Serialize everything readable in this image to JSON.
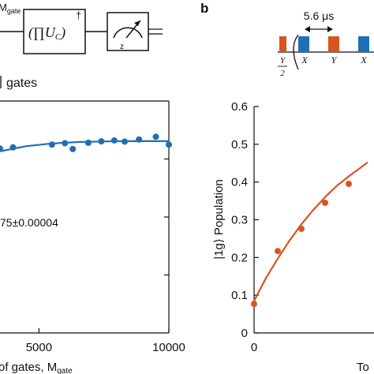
{
  "panel_b_label": "b",
  "circuit": {
    "mgate_label": "M",
    "mgate_sub": "gate",
    "product_label": "(∏U",
    "product_sub": "C",
    "product_close": ")",
    "dagger": "†",
    "meter_axis": "z"
  },
  "pulse_sequence": {
    "spacing_label": "5.6 μs",
    "pulse_labels": [
      "Y/2",
      "X",
      "Y",
      "X"
    ],
    "colors": {
      "orange": "#d9541e",
      "blue": "#1f6fb4"
    }
  },
  "chart_data": [
    {
      "type": "scatter",
      "partial": true,
      "title": "gates",
      "xlabel": "of gates, M",
      "xlabel_sub": "gate",
      "ylabel": "",
      "xlim": [
        3500,
        10000
      ],
      "ylim": [
        0,
        1
      ],
      "x_ticks": [
        5000,
        10000
      ],
      "annotation": "75±0.00004",
      "series": [
        {
          "color": "#1f6fb4",
          "points": [
            {
              "x": 3500,
              "y": 0.795
            },
            {
              "x": 4000,
              "y": 0.8
            },
            {
              "x": 5500,
              "y": 0.812
            },
            {
              "x": 6000,
              "y": 0.818
            },
            {
              "x": 6300,
              "y": 0.793
            },
            {
              "x": 6900,
              "y": 0.82
            },
            {
              "x": 7400,
              "y": 0.826
            },
            {
              "x": 7900,
              "y": 0.83
            },
            {
              "x": 8300,
              "y": 0.825
            },
            {
              "x": 8850,
              "y": 0.834
            },
            {
              "x": 9500,
              "y": 0.846
            },
            {
              "x": 10000,
              "y": 0.812
            }
          ],
          "fit": [
            {
              "x": 3500,
              "y": 0.783
            },
            {
              "x": 4500,
              "y": 0.805
            },
            {
              "x": 5500,
              "y": 0.817
            },
            {
              "x": 6500,
              "y": 0.823
            },
            {
              "x": 7500,
              "y": 0.826
            },
            {
              "x": 8500,
              "y": 0.827
            },
            {
              "x": 10000,
              "y": 0.827
            }
          ]
        }
      ]
    },
    {
      "type": "line",
      "partial": true,
      "ylabel": "|1g⟩ Population",
      "xlabel": "To",
      "xlim": [
        0,
        4.8
      ],
      "ylim": [
        0,
        0.6
      ],
      "x_ticks": [
        0
      ],
      "y_ticks": [
        0,
        0.1,
        0.2,
        0.3,
        0.4,
        0.5,
        0.6
      ],
      "series": [
        {
          "color": "#d9541e",
          "points": [
            {
              "x": 0,
              "y": 0.077
            },
            {
              "x": 1,
              "y": 0.217
            },
            {
              "x": 2,
              "y": 0.276
            },
            {
              "x": 3,
              "y": 0.345
            },
            {
              "x": 4,
              "y": 0.395
            }
          ],
          "fit": [
            {
              "x": 0,
              "y": 0.085
            },
            {
              "x": 0.5,
              "y": 0.145
            },
            {
              "x": 1,
              "y": 0.197
            },
            {
              "x": 1.5,
              "y": 0.245
            },
            {
              "x": 2,
              "y": 0.288
            },
            {
              "x": 2.5,
              "y": 0.326
            },
            {
              "x": 3,
              "y": 0.36
            },
            {
              "x": 3.5,
              "y": 0.39
            },
            {
              "x": 4,
              "y": 0.415
            },
            {
              "x": 4.5,
              "y": 0.438
            },
            {
              "x": 4.8,
              "y": 0.452
            }
          ]
        }
      ]
    }
  ]
}
